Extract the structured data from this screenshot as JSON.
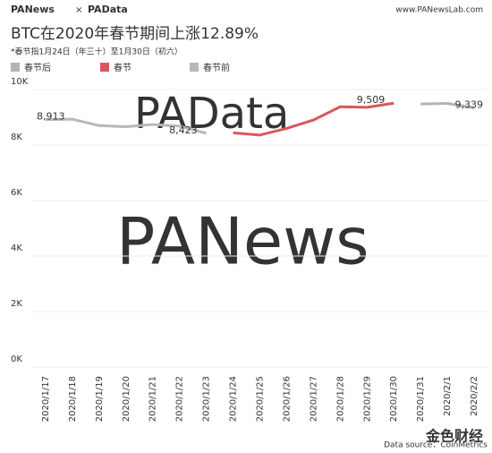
{
  "header": {
    "brand_left": "PANews",
    "separator": "×",
    "brand_right": "PAData",
    "url": "www.PANewsLab.com"
  },
  "chart_data": {
    "type": "line",
    "title": "BTC在2020年春节期间上涨12.89%",
    "subtitle": "*春节指1月24日（年三十）至1月30日（初六）",
    "categories": [
      "2020/1/17",
      "2020/1/18",
      "2020/1/19",
      "2020/1/20",
      "2020/1/21",
      "2020/1/22",
      "2020/1/23",
      "2020/1/24",
      "2020/1/25",
      "2020/1/26",
      "2020/1/27",
      "2020/1/28",
      "2020/1/29",
      "2020/1/30",
      "2020/1/31",
      "2020/2/1",
      "2020/2/2"
    ],
    "series": [
      {
        "name": "春节后",
        "color": "#b3b3b3",
        "values": [
          null,
          null,
          null,
          null,
          null,
          null,
          null,
          null,
          null,
          null,
          null,
          null,
          null,
          null,
          9480,
          9500,
          9339
        ],
        "value_labels": [
          null,
          null,
          null,
          null,
          null,
          null,
          null,
          null,
          null,
          null,
          null,
          null,
          null,
          null,
          null,
          null,
          "9,339"
        ]
      },
      {
        "name": "春节",
        "color": "#d9575b",
        "values": [
          null,
          null,
          null,
          null,
          null,
          null,
          null,
          8440,
          8360,
          8600,
          8900,
          9380,
          9360,
          9509,
          null,
          null,
          null
        ],
        "value_labels": [
          null,
          null,
          null,
          null,
          null,
          null,
          null,
          null,
          null,
          null,
          null,
          null,
          null,
          "9,509",
          null,
          null,
          null
        ]
      },
      {
        "name": "春节前",
        "color": "#b8b8b8",
        "values": [
          8913,
          8930,
          8700,
          8660,
          8740,
          8680,
          8423,
          null,
          null,
          null,
          null,
          null,
          null,
          null,
          null,
          null,
          null
        ],
        "value_labels": [
          "8,913",
          null,
          null,
          null,
          null,
          null,
          "8,423",
          null,
          null,
          null,
          null,
          null,
          null,
          null,
          null,
          null,
          null
        ]
      }
    ],
    "ylim": [
      0,
      10000
    ],
    "yticks": [
      {
        "value": 0,
        "label": "0K"
      },
      {
        "value": 2000,
        "label": "2K"
      },
      {
        "value": 4000,
        "label": "4K"
      },
      {
        "value": 6000,
        "label": "6K"
      },
      {
        "value": 8000,
        "label": "8K"
      },
      {
        "value": 10000,
        "label": "10K"
      }
    ],
    "grid": true,
    "watermarks": [
      "PAData",
      "PANews"
    ],
    "source": "Data source：CoinMetrics"
  },
  "footer": {
    "watermark": "金色财经"
  }
}
